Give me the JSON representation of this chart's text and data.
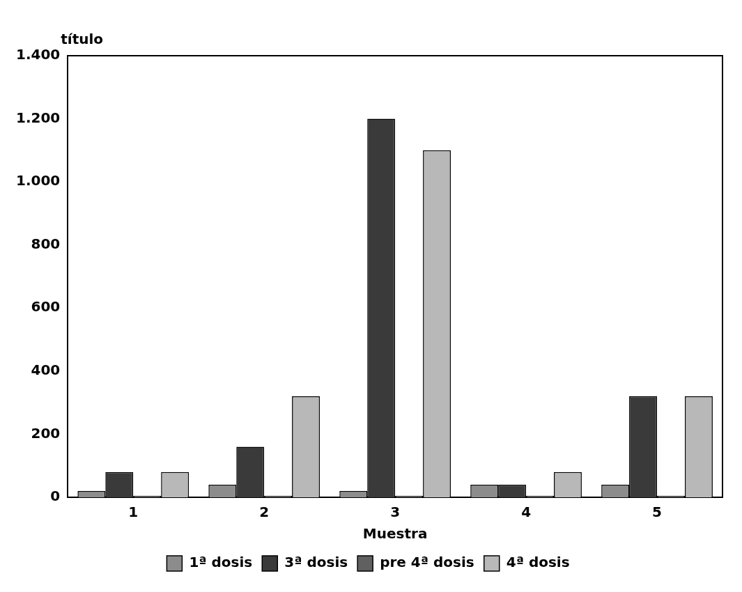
{
  "chart_data": {
    "type": "bar",
    "ylabel": "título",
    "xlabel": "Muestra",
    "categories": [
      "1",
      "2",
      "3",
      "4",
      "5"
    ],
    "series": [
      {
        "name": "1ª dosis",
        "color": "#8c8c8c",
        "values": [
          20,
          40,
          20,
          40,
          40
        ]
      },
      {
        "name": "3ª dosis",
        "color": "#3a3a3a",
        "values": [
          80,
          160,
          1200,
          40,
          320
        ]
      },
      {
        "name": "pre 4ª dosis",
        "color": "#606060",
        "values": [
          5,
          5,
          5,
          5,
          5
        ]
      },
      {
        "name": "4ª dosis",
        "color": "#b8b8b8",
        "values": [
          80,
          320,
          1100,
          80,
          320
        ]
      }
    ],
    "ylim": [
      0,
      1400
    ],
    "yticks": [
      0,
      200,
      400,
      600,
      800,
      {
        "value": 1000,
        "label": "1.000"
      },
      {
        "value": 1200,
        "label": "1.200"
      },
      {
        "value": 1400,
        "label": "1.400"
      }
    ],
    "grid": false,
    "legend": "bottom"
  }
}
